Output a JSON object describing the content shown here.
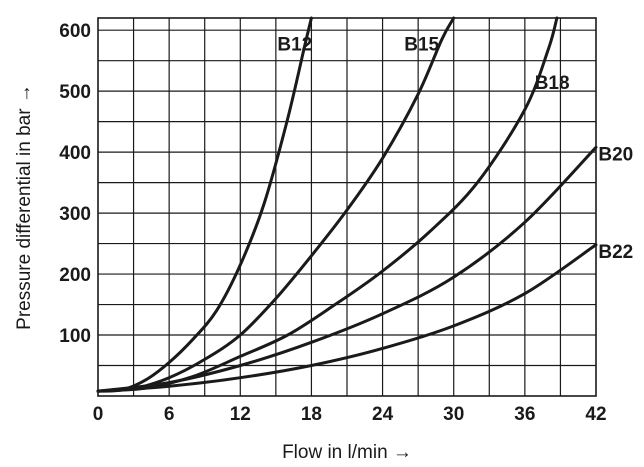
{
  "chart_data": {
    "type": "line",
    "title": "",
    "xlabel": "Flow in l/min →",
    "ylabel": "Pressure differential in bar →",
    "xlim": [
      0,
      42
    ],
    "ylim": [
      0,
      620
    ],
    "x_ticks": [
      0,
      6,
      12,
      18,
      24,
      30,
      36,
      42
    ],
    "x_tick_labels": [
      "0",
      "6",
      "12",
      "18",
      "24",
      "30",
      "36",
      "42"
    ],
    "y_ticks": [
      100,
      200,
      300,
      400,
      500,
      600
    ],
    "y_tick_labels": [
      "100",
      "200",
      "300",
      "400",
      "500",
      "600"
    ],
    "x_minor_grid": [
      3,
      9,
      15,
      21,
      27,
      33,
      39
    ],
    "y_minor_grid": [
      50,
      150,
      250,
      350,
      450,
      550
    ],
    "grid": true,
    "legend": "none",
    "line_color": "#1a1a1a",
    "series": [
      {
        "name": "B12",
        "label_at": [
          16.6,
          578
        ],
        "points": [
          [
            0,
            8
          ],
          [
            2,
            10
          ],
          [
            4,
            26
          ],
          [
            6,
            55
          ],
          [
            8,
            93
          ],
          [
            10,
            140
          ],
          [
            12,
            215
          ],
          [
            14,
            315
          ],
          [
            16,
            455
          ],
          [
            17.5,
            580
          ],
          [
            18,
            620
          ]
        ]
      },
      {
        "name": "B15",
        "label_at": [
          27.3,
          578
        ],
        "points": [
          [
            0,
            8
          ],
          [
            3,
            12
          ],
          [
            6,
            30
          ],
          [
            9,
            60
          ],
          [
            12,
            100
          ],
          [
            15,
            160
          ],
          [
            18,
            230
          ],
          [
            21,
            305
          ],
          [
            24,
            390
          ],
          [
            27,
            495
          ],
          [
            29,
            585
          ],
          [
            30,
            620
          ]
        ]
      },
      {
        "name": "B18",
        "label_at": [
          38.3,
          515
        ],
        "points": [
          [
            0,
            8
          ],
          [
            4,
            13
          ],
          [
            8,
            32
          ],
          [
            12,
            65
          ],
          [
            16,
            100
          ],
          [
            20,
            150
          ],
          [
            24,
            205
          ],
          [
            28,
            270
          ],
          [
            32,
            350
          ],
          [
            36,
            470
          ],
          [
            38,
            570
          ],
          [
            38.7,
            620
          ]
        ]
      },
      {
        "name": "B20",
        "label_at": [
          42.2,
          398
        ],
        "points": [
          [
            0,
            8
          ],
          [
            6,
            22
          ],
          [
            12,
            50
          ],
          [
            18,
            88
          ],
          [
            24,
            135
          ],
          [
            30,
            195
          ],
          [
            36,
            285
          ],
          [
            42,
            408
          ]
        ]
      },
      {
        "name": "B22",
        "label_at": [
          42.2,
          238
        ],
        "points": [
          [
            0,
            8
          ],
          [
            6,
            16
          ],
          [
            12,
            30
          ],
          [
            18,
            50
          ],
          [
            24,
            78
          ],
          [
            30,
            115
          ],
          [
            36,
            168
          ],
          [
            42,
            248
          ]
        ]
      }
    ]
  }
}
